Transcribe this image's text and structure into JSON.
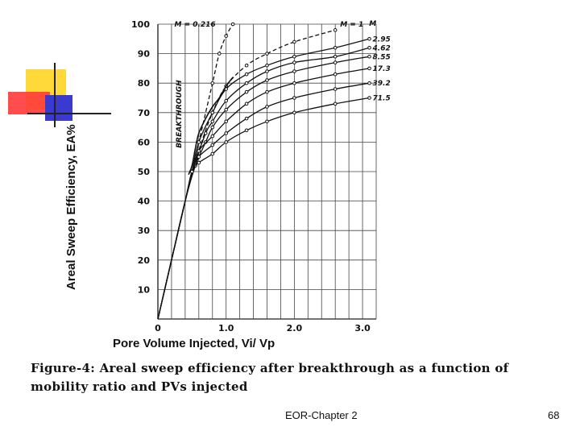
{
  "chart_data": {
    "type": "line",
    "title": "",
    "xlabel": "Pore Volume Injected, Vi/ Vp",
    "ylabel": "Areal Sweep Efficiency, EA%",
    "xlim": [
      0,
      3.2
    ],
    "ylim": [
      0,
      100
    ],
    "x_ticks": [
      {
        "value": 0,
        "label": "0"
      },
      {
        "value": 1.0,
        "label": "1.0"
      },
      {
        "value": 2.0,
        "label": "2.0"
      },
      {
        "value": 3.0,
        "label": "3.0"
      }
    ],
    "y_ticks": [
      {
        "value": 10,
        "label": "10"
      },
      {
        "value": 20,
        "label": "20"
      },
      {
        "value": 30,
        "label": "30"
      },
      {
        "value": 40,
        "label": "40"
      },
      {
        "value": 50,
        "label": "50"
      },
      {
        "value": 60,
        "label": "60"
      },
      {
        "value": 70,
        "label": "70"
      },
      {
        "value": 80,
        "label": "80"
      },
      {
        "value": 90,
        "label": "90"
      },
      {
        "value": 100,
        "label": "100"
      }
    ],
    "grid": true,
    "legend_header": "M",
    "series": [
      {
        "name": "M = 0.216",
        "label": "M = 0.216",
        "dashed": true,
        "x": [
          0,
          0.2,
          0.4,
          0.6,
          0.8,
          0.9,
          1.0,
          1.1
        ],
        "y": [
          0,
          20,
          40,
          60,
          80,
          90,
          96,
          100
        ]
      },
      {
        "name": "M = 1",
        "label": "M = 1",
        "dashed": true,
        "x": [
          0,
          0.2,
          0.4,
          0.6,
          0.8,
          1.0,
          1.3,
          1.6,
          2.0,
          2.6
        ],
        "y": [
          0,
          20,
          40,
          57,
          70,
          79,
          86,
          90,
          94,
          98
        ]
      },
      {
        "name": "2.95",
        "label": "2.95",
        "dashed": false,
        "x": [
          0,
          0.2,
          0.4,
          0.5,
          0.6,
          0.8,
          1.0,
          1.3,
          1.6,
          2.0,
          2.6,
          3.1
        ],
        "y": [
          0,
          20,
          40,
          50,
          60,
          70,
          78,
          83,
          86,
          89,
          92,
          95
        ]
      },
      {
        "name": "4.62",
        "label": "4.62",
        "dashed": false,
        "x": [
          0,
          0.2,
          0.4,
          0.55,
          0.7,
          0.8,
          1.0,
          1.3,
          1.6,
          2.0,
          2.6,
          3.1
        ],
        "y": [
          0,
          20,
          40,
          53,
          63,
          67,
          74,
          80,
          84,
          87,
          89,
          92
        ]
      },
      {
        "name": "8.55",
        "label": "8.55",
        "dashed": false,
        "x": [
          0,
          0.2,
          0.4,
          0.55,
          0.7,
          0.8,
          1.0,
          1.3,
          1.6,
          2.0,
          2.6,
          3.1
        ],
        "y": [
          0,
          20,
          40,
          52,
          60,
          65,
          71,
          77,
          81,
          84,
          87,
          89
        ]
      },
      {
        "name": "17.3",
        "label": "17.3",
        "dashed": false,
        "x": [
          0,
          0.2,
          0.4,
          0.5,
          0.6,
          0.8,
          1.0,
          1.3,
          1.6,
          2.0,
          2.6,
          3.1
        ],
        "y": [
          0,
          20,
          40,
          50,
          57,
          62,
          67,
          73,
          77,
          80,
          83,
          85
        ]
      },
      {
        "name": "39.2",
        "label": "39.2",
        "dashed": false,
        "x": [
          0,
          0.2,
          0.4,
          0.5,
          0.6,
          0.8,
          1.0,
          1.3,
          1.6,
          2.0,
          2.6,
          3.1
        ],
        "y": [
          0,
          20,
          40,
          50,
          55,
          59,
          63,
          68,
          72,
          75,
          78,
          80
        ]
      },
      {
        "name": "71.5",
        "label": "71.5",
        "dashed": false,
        "x": [
          0,
          0.2,
          0.4,
          0.5,
          0.6,
          0.8,
          1.0,
          1.3,
          1.6,
          2.0,
          2.6,
          3.1
        ],
        "y": [
          0,
          20,
          40,
          50,
          53,
          56,
          60,
          64,
          67,
          70,
          73,
          75
        ]
      }
    ],
    "breakthrough_curve": {
      "label": "BREAKTHROUGH",
      "x": [
        0.45,
        0.5,
        0.55,
        0.6,
        0.7,
        0.8,
        0.9,
        1.0,
        1.1
      ],
      "y": [
        49,
        52,
        58,
        63,
        68,
        72,
        75,
        79,
        82
      ]
    }
  },
  "caption": "Figure-4: Areal sweep efficiency after breakthrough as a function of mobility ratio and PVs injected",
  "footer": {
    "chapter": "EOR-Chapter 2",
    "page": "68"
  }
}
